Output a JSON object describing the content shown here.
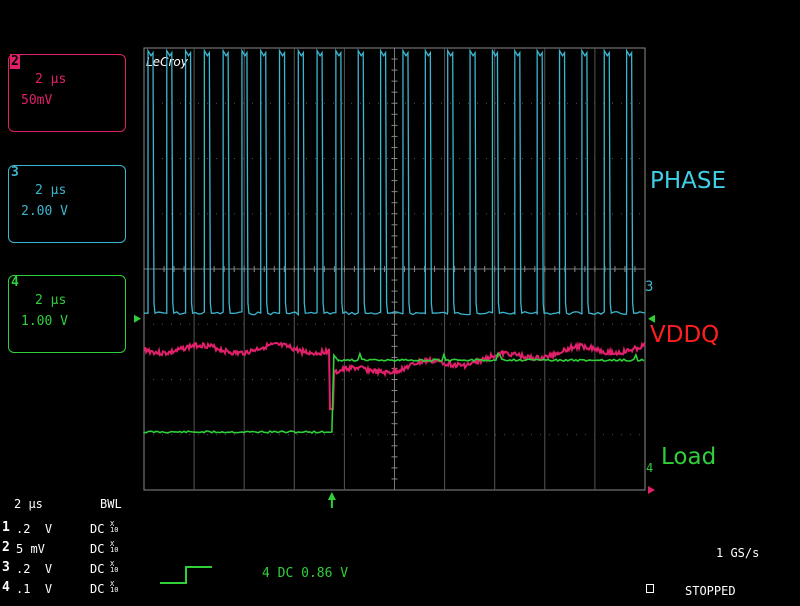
{
  "channels": [
    {
      "id": "2",
      "timebase": "2 μs",
      "scale": "50mV",
      "color": "#e0206a"
    },
    {
      "id": "3",
      "timebase": "2 μs",
      "scale": "2.00 V",
      "color": "#3bb6cf"
    },
    {
      "id": "4",
      "timebase": "2 μs",
      "scale": "1.00 V",
      "color": "#2fcf3a"
    }
  ],
  "brand": "LeCroy",
  "trace_labels": {
    "phase": "PHASE",
    "vddq": "VDDQ",
    "load": "Load"
  },
  "marker_labels": {
    "ch3": "3",
    "ch4": "4"
  },
  "footer": {
    "timebase": "2 μs",
    "bwl": "BWL",
    "rows": [
      {
        "num": "1",
        "scale": ".2  V",
        "coupling": "DC"
      },
      {
        "num": "2",
        "scale": "5 mV",
        "coupling": "DC"
      },
      {
        "num": "3",
        "scale": ".2  V",
        "coupling": "DC"
      },
      {
        "num": "4",
        "scale": ".1  V",
        "coupling": "DC"
      }
    ],
    "probe_x": "X",
    "probe_10": "10",
    "trigger": "4 DC 0.86 V",
    "sample_rate": "1 GS/s",
    "status": "STOPPED"
  },
  "chart_data": {
    "type": "line",
    "grid": true,
    "divisions": {
      "x": 10,
      "y": 8
    },
    "time_per_div_us": 2,
    "load_step_time_us": 7.5,
    "series": [
      {
        "name": "PHASE",
        "color": "#3bb6cf",
        "kind": "switching",
        "pulses_before_step": 10,
        "pulses_after_step": 14,
        "low_div": 4.8,
        "high_div": 0.05
      },
      {
        "name": "VDDQ",
        "color": "#e0206a",
        "kind": "ripple",
        "before_level_div": 5.45,
        "after_level_div": 5.9,
        "recovery_level_div": 5.45
      },
      {
        "name": "Load",
        "color": "#2fcf3a",
        "kind": "step",
        "low_div": 6.95,
        "high_div": 5.65
      }
    ]
  }
}
